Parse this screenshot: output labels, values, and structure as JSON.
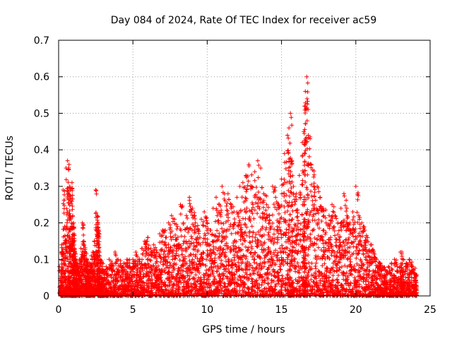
{
  "chart_data": {
    "type": "scatter",
    "title": "Day 084 of 2024, Rate Of TEC Index for receiver ac59",
    "xlabel": "GPS time / hours",
    "ylabel": "ROTI / TECUs",
    "xlim": [
      0,
      25
    ],
    "ylim": [
      0,
      0.7
    ],
    "xticks": [
      0,
      5,
      10,
      15,
      20,
      25
    ],
    "xtick_labels": [
      "0",
      "5",
      "10",
      "15",
      "20",
      "25"
    ],
    "yticks": [
      0,
      0.1,
      0.2,
      0.3,
      0.4,
      0.5,
      0.6,
      0.7
    ],
    "ytick_labels": [
      "0",
      "0.1",
      "0.2",
      "0.3",
      "0.4",
      "0.5",
      "0.6",
      "0.7"
    ],
    "grid": true,
    "marker": "plus",
    "color": "#ff0000",
    "series": [
      {
        "values_description_only": false,
        "x": [
          0.05,
          0.2,
          0.3,
          0.4,
          0.5,
          0.6,
          0.7,
          0.75,
          0.8,
          0.9,
          0.95,
          1.0,
          1.05,
          1.1,
          1.15,
          1.2,
          1.3,
          1.4,
          1.5,
          1.6,
          1.7,
          1.8,
          1.9,
          2.0,
          2.1,
          2.2,
          2.3,
          2.4,
          2.5,
          2.6,
          2.65,
          2.7,
          2.75,
          2.8,
          2.9,
          3.0,
          3.2,
          3.4,
          3.6,
          3.8,
          4.0,
          4.2,
          4.4,
          4.6,
          4.8,
          5.0,
          5.2,
          5.4,
          5.6,
          5.8,
          6.0,
          6.2,
          6.4,
          6.6,
          6.8,
          7.0,
          7.2,
          7.4,
          7.6,
          7.8,
          8.0,
          8.2,
          8.4,
          8.6,
          8.8,
          9.0,
          9.2,
          9.4,
          9.6,
          9.8,
          10.0,
          10.2,
          10.4,
          10.6,
          10.8,
          11.0,
          11.2,
          11.4,
          11.6,
          11.8,
          12.0,
          12.2,
          12.4,
          12.6,
          12.8,
          13.0,
          13.2,
          13.4,
          13.6,
          13.8,
          14.0,
          14.2,
          14.4,
          14.6,
          14.8,
          15.0,
          15.2,
          15.4,
          15.5,
          15.6,
          15.7,
          15.8,
          16.0,
          16.2,
          16.4,
          16.5,
          16.55,
          16.6,
          16.7,
          16.8,
          17.0,
          17.2,
          17.4,
          17.6,
          17.8,
          18.0,
          18.2,
          18.4,
          18.6,
          18.8,
          19.0,
          19.2,
          19.4,
          19.6,
          19.8,
          20.0,
          20.2,
          20.4,
          20.6,
          20.8,
          21.0,
          21.2,
          21.4,
          21.6,
          21.8,
          22.0,
          22.2,
          22.4,
          22.6,
          22.8,
          23.0,
          23.1,
          23.2,
          23.4,
          23.6,
          23.8,
          24.0
        ],
        "y": [
          0.08,
          0.14,
          0.29,
          0.19,
          0.35,
          0.37,
          0.36,
          0.3,
          0.26,
          0.31,
          0.22,
          0.2,
          0.17,
          0.12,
          0.1,
          0.09,
          0.08,
          0.1,
          0.13,
          0.2,
          0.15,
          0.12,
          0.1,
          0.08,
          0.09,
          0.11,
          0.12,
          0.15,
          0.29,
          0.22,
          0.2,
          0.18,
          0.12,
          0.1,
          0.09,
          0.07,
          0.08,
          0.1,
          0.09,
          0.12,
          0.1,
          0.08,
          0.09,
          0.1,
          0.08,
          0.1,
          0.12,
          0.1,
          0.13,
          0.15,
          0.16,
          0.13,
          0.14,
          0.12,
          0.17,
          0.18,
          0.16,
          0.2,
          0.22,
          0.21,
          0.19,
          0.25,
          0.2,
          0.22,
          0.27,
          0.24,
          0.2,
          0.18,
          0.21,
          0.23,
          0.2,
          0.18,
          0.24,
          0.27,
          0.25,
          0.3,
          0.26,
          0.28,
          0.25,
          0.23,
          0.27,
          0.3,
          0.31,
          0.33,
          0.36,
          0.3,
          0.34,
          0.37,
          0.35,
          0.28,
          0.25,
          0.22,
          0.3,
          0.27,
          0.25,
          0.32,
          0.39,
          0.44,
          0.46,
          0.5,
          0.37,
          0.3,
          0.28,
          0.33,
          0.42,
          0.45,
          0.52,
          0.56,
          0.6,
          0.44,
          0.36,
          0.3,
          0.3,
          0.27,
          0.24,
          0.2,
          0.22,
          0.25,
          0.22,
          0.2,
          0.24,
          0.28,
          0.22,
          0.2,
          0.23,
          0.3,
          0.22,
          0.2,
          0.18,
          0.16,
          0.14,
          0.12,
          0.1,
          0.09,
          0.08,
          0.07,
          0.08,
          0.09,
          0.1,
          0.08,
          0.12,
          0.12,
          0.1,
          0.09,
          0.1,
          0.08,
          0.06
        ]
      }
    ]
  }
}
